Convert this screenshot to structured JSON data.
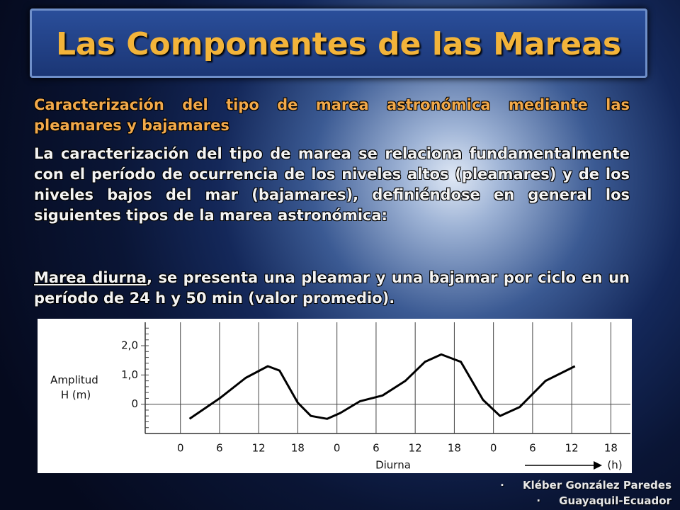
{
  "header": {
    "title": "Las Componentes de las Mareas"
  },
  "subtitle": "Caracterización del tipo de marea astronómica mediante las pleamares y bajamares",
  "paragraphs": [
    "La caracterización del tipo de marea se relaciona fundamentalmente con el período de ocurrencia de los niveles altos (pleamares) y de los niveles bajos del mar (bajamares), definiéndose en general los siguientes tipos de la marea astronómica:"
  ],
  "definition": {
    "term": "Marea diurna",
    "text": ", se presenta una pleamar y una bajamar por ciclo en un período de 24 h y 50 min (valor promedio)."
  },
  "figure": {
    "type": "line",
    "ylabel": [
      "Amplitud",
      "H (m)"
    ],
    "xlabel": "Diurna",
    "xunit": "(h)",
    "color": "#000000",
    "xlim": [
      -5.4,
      69
    ],
    "ylim": [
      -1,
      2.8
    ],
    "xticks": [
      0,
      6,
      12,
      18,
      {
        "value": 24,
        "label": "0"
      },
      {
        "value": 30,
        "label": "6"
      },
      {
        "value": 36,
        "label": "12"
      },
      {
        "value": 42,
        "label": "18"
      },
      {
        "value": 48,
        "label": "0"
      },
      {
        "value": 54,
        "label": "6"
      },
      {
        "value": 60,
        "label": "12"
      },
      {
        "value": 66,
        "label": "18"
      }
    ],
    "yticks": [
      0,
      {
        "value": 1,
        "label": "1,0"
      },
      {
        "value": 2,
        "label": "2,0"
      }
    ],
    "x": [
      1.4,
      6,
      10,
      13.4,
      15.2,
      18,
      20,
      22.5,
      24.5,
      27.5,
      31,
      34.5,
      37.5,
      40,
      43,
      46.4,
      49,
      52,
      56,
      60.5
    ],
    "values": [
      -0.5,
      0.2,
      0.9,
      1.3,
      1.15,
      0.05,
      -0.4,
      -0.5,
      -0.3,
      0.1,
      0.3,
      0.8,
      1.45,
      1.7,
      1.45,
      0.15,
      -0.4,
      -0.1,
      0.8,
      1.3
    ]
  },
  "footer": [
    "Kléber González Paredes",
    "Guayaquil-Ecuador"
  ]
}
